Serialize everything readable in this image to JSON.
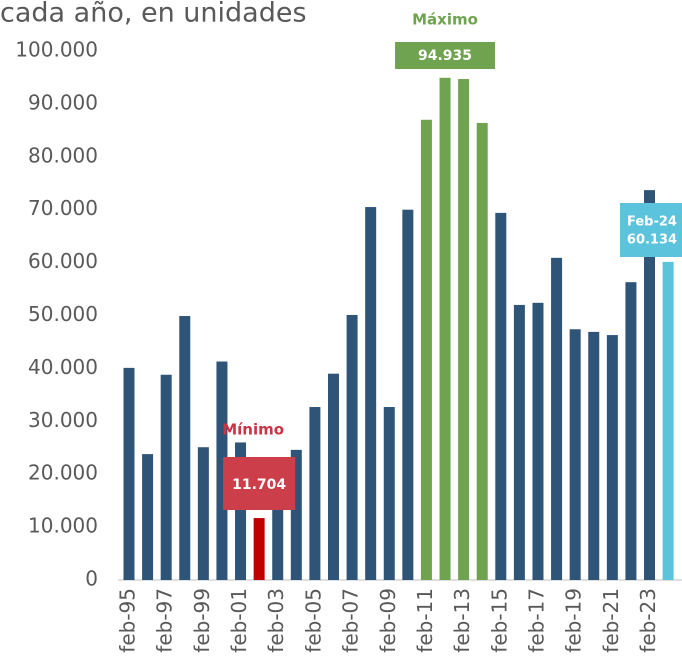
{
  "chart_data": {
    "type": "bar",
    "title": "cada año, en unidades",
    "categories": [
      "feb-95",
      null,
      "feb-97",
      null,
      "feb-99",
      null,
      "feb-01",
      null,
      "feb-03",
      null,
      "feb-05",
      null,
      "feb-07",
      null,
      "feb-09",
      null,
      "feb-11",
      null,
      "feb-13",
      null,
      "feb-15",
      null,
      "feb-17",
      null,
      "feb-19",
      null,
      "feb-21",
      null,
      "feb-23",
      null
    ],
    "values": [
      40100,
      23800,
      38800,
      49900,
      25100,
      41300,
      26000,
      11704,
      13500,
      24600,
      32700,
      39000,
      50100,
      70500,
      32700,
      70000,
      87000,
      94935,
      94700,
      86400,
      69400,
      52000,
      52400,
      60900,
      47400,
      46900,
      46300,
      56300,
      73700,
      60134
    ],
    "value_labels": [
      null,
      null,
      null,
      null,
      null,
      null,
      null,
      "11.704",
      null,
      null,
      null,
      null,
      null,
      null,
      null,
      null,
      null,
      "94.935",
      null,
      null,
      null,
      null,
      null,
      null,
      null,
      null,
      null,
      null,
      null,
      "60.134"
    ],
    "colors": [
      "#2e5578",
      "#2e5578",
      "#2e5578",
      "#2e5578",
      "#2e5578",
      "#2e5578",
      "#2e5578",
      "#c00000",
      "#2e5578",
      "#2e5578",
      "#2e5578",
      "#2e5578",
      "#2e5578",
      "#2e5578",
      "#2e5578",
      "#2e5578",
      "#70a350",
      "#70a350",
      "#70a350",
      "#70a350",
      "#2e5578",
      "#2e5578",
      "#2e5578",
      "#2e5578",
      "#2e5578",
      "#2e5578",
      "#2e5578",
      "#2e5578",
      "#2e5578",
      "#5bc4dc"
    ],
    "max_label": "Máximo",
    "min_label": "Mínimo",
    "last_label": "Feb-24",
    "ylim": [
      0,
      100000
    ],
    "yticks": [
      0,
      {
        "value": 10000,
        "label": "10.000"
      },
      {
        "value": 20000,
        "label": "20.000"
      },
      {
        "value": 30000,
        "label": "30.000"
      },
      {
        "value": 40000,
        "label": "40.000"
      },
      {
        "value": 50000,
        "label": "50.000"
      },
      {
        "value": 60000,
        "label": "60.000"
      },
      {
        "value": 70000,
        "label": "70.000"
      },
      {
        "value": 80000,
        "label": "80.000"
      },
      {
        "value": 90000,
        "label": "90.000"
      },
      {
        "value": 100000,
        "label": "100.000"
      }
    ],
    "grid": false
  }
}
